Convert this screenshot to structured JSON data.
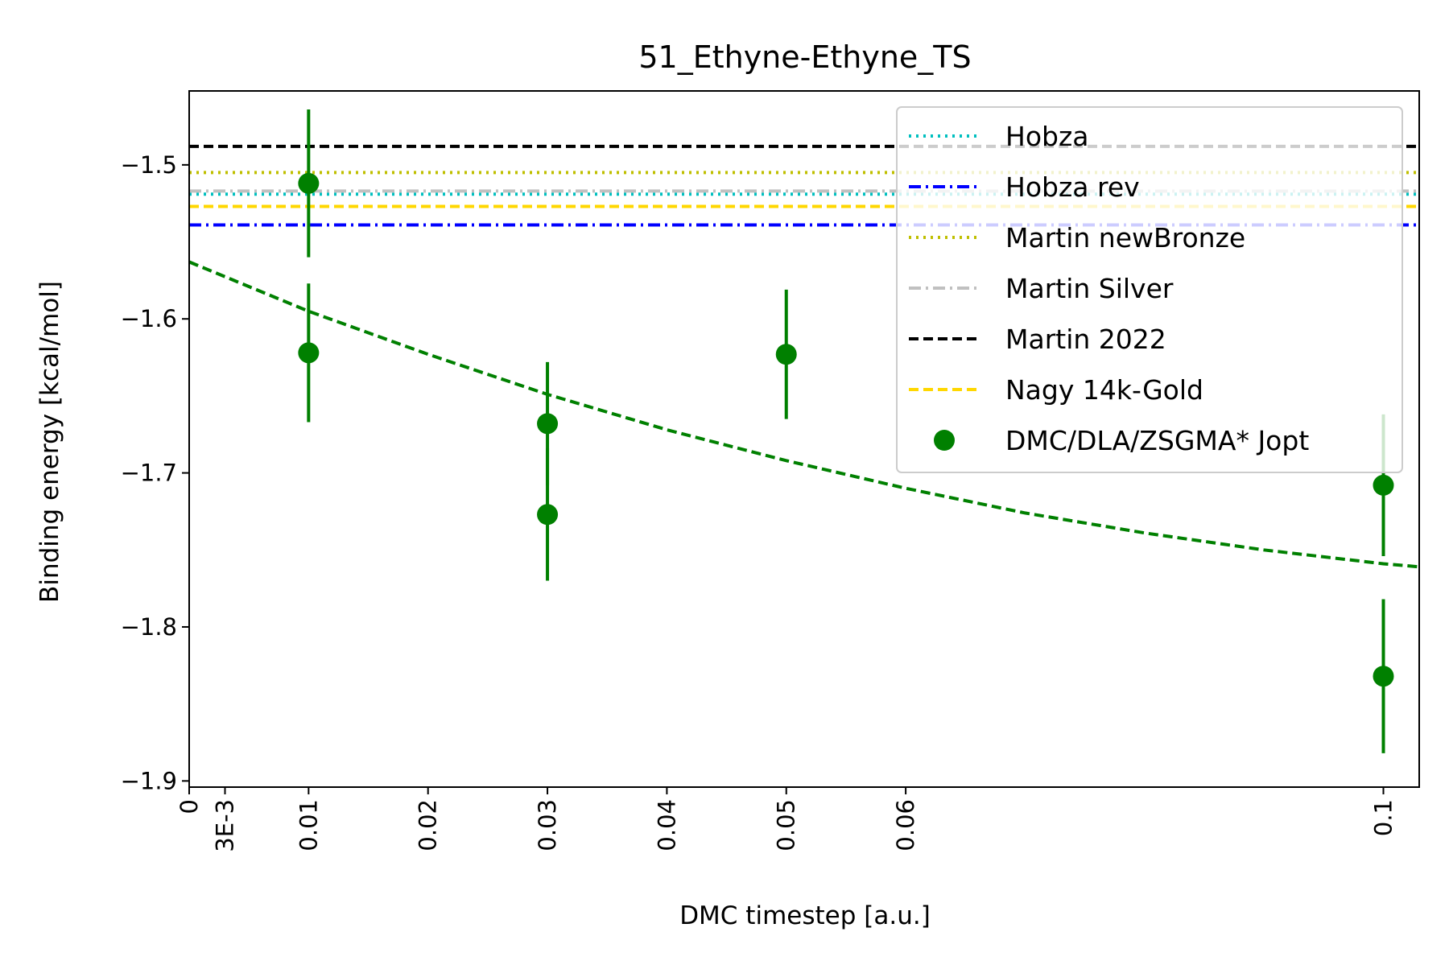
{
  "chart_data": {
    "type": "scatter",
    "title": "51_Ethyne-Ethyne_TS",
    "xlabel": "DMC timestep [a.u.]",
    "ylabel": "Binding energy [kcal/mol]",
    "xlim": [
      0,
      0.103
    ],
    "ylim": [
      -1.904,
      -1.452
    ],
    "x_ticks": [
      {
        "value": 0,
        "label": "0"
      },
      {
        "value": 0.003,
        "label": "3E-3"
      },
      {
        "value": 0.01,
        "label": "0.01"
      },
      {
        "value": 0.02,
        "label": "0.02"
      },
      {
        "value": 0.03,
        "label": "0.03"
      },
      {
        "value": 0.04,
        "label": "0.04"
      },
      {
        "value": 0.05,
        "label": "0.05"
      },
      {
        "value": 0.06,
        "label": "0.06"
      },
      {
        "value": 0.1,
        "label": "0.1"
      }
    ],
    "y_ticks": [
      {
        "value": -1.5,
        "label": "−1.5"
      },
      {
        "value": -1.6,
        "label": "−1.6"
      },
      {
        "value": -1.7,
        "label": "−1.7"
      },
      {
        "value": -1.8,
        "label": "−1.8"
      },
      {
        "value": -1.9,
        "label": "−1.9"
      }
    ],
    "reference_lines": [
      {
        "name": "Hobza",
        "value": -1.519,
        "color": "#00bfbf",
        "style": "dotted"
      },
      {
        "name": "Hobza rev",
        "value": -1.539,
        "color": "#0000ff",
        "style": "dashdot"
      },
      {
        "name": "Martin newBronze",
        "value": -1.505,
        "color": "#bfbf00",
        "style": "dotted"
      },
      {
        "name": "Martin Silver",
        "value": -1.517,
        "color": "#c0c0c0",
        "style": "dashdot"
      },
      {
        "name": "Martin 2022",
        "value": -1.488,
        "color": "#000000",
        "style": "dashed"
      },
      {
        "name": "Nagy 14k-Gold",
        "value": -1.527,
        "color": "#ffd700",
        "style": "dashed"
      }
    ],
    "series": [
      {
        "name": "DMC/DLA/ZSGMA* Jopt",
        "color": "#008000",
        "points": [
          {
            "x": 0.01,
            "y": -1.512,
            "err": 0.048
          },
          {
            "x": 0.01,
            "y": -1.622,
            "err": 0.045
          },
          {
            "x": 0.03,
            "y": -1.668,
            "err": 0.04
          },
          {
            "x": 0.03,
            "y": -1.727,
            "err": 0.043
          },
          {
            "x": 0.05,
            "y": -1.623,
            "err": 0.042
          },
          {
            "x": 0.1,
            "y": -1.708,
            "err": 0.046
          },
          {
            "x": 0.1,
            "y": -1.832,
            "err": 0.05
          }
        ]
      }
    ],
    "fit": {
      "color": "#008000",
      "style": "dashed",
      "x": [
        0,
        0.01,
        0.02,
        0.03,
        0.04,
        0.05,
        0.06,
        0.07,
        0.08,
        0.09,
        0.1,
        0.103
      ],
      "y": [
        -1.563,
        -1.595,
        -1.623,
        -1.649,
        -1.672,
        -1.692,
        -1.71,
        -1.726,
        -1.739,
        -1.75,
        -1.759,
        -1.761
      ]
    },
    "legend": {
      "position": "top-right",
      "order": [
        "Hobza",
        "Hobza rev",
        "Martin newBronze",
        "Martin Silver",
        "Martin 2022",
        "Nagy 14k-Gold",
        "DMC/DLA/ZSGMA* Jopt"
      ]
    }
  }
}
